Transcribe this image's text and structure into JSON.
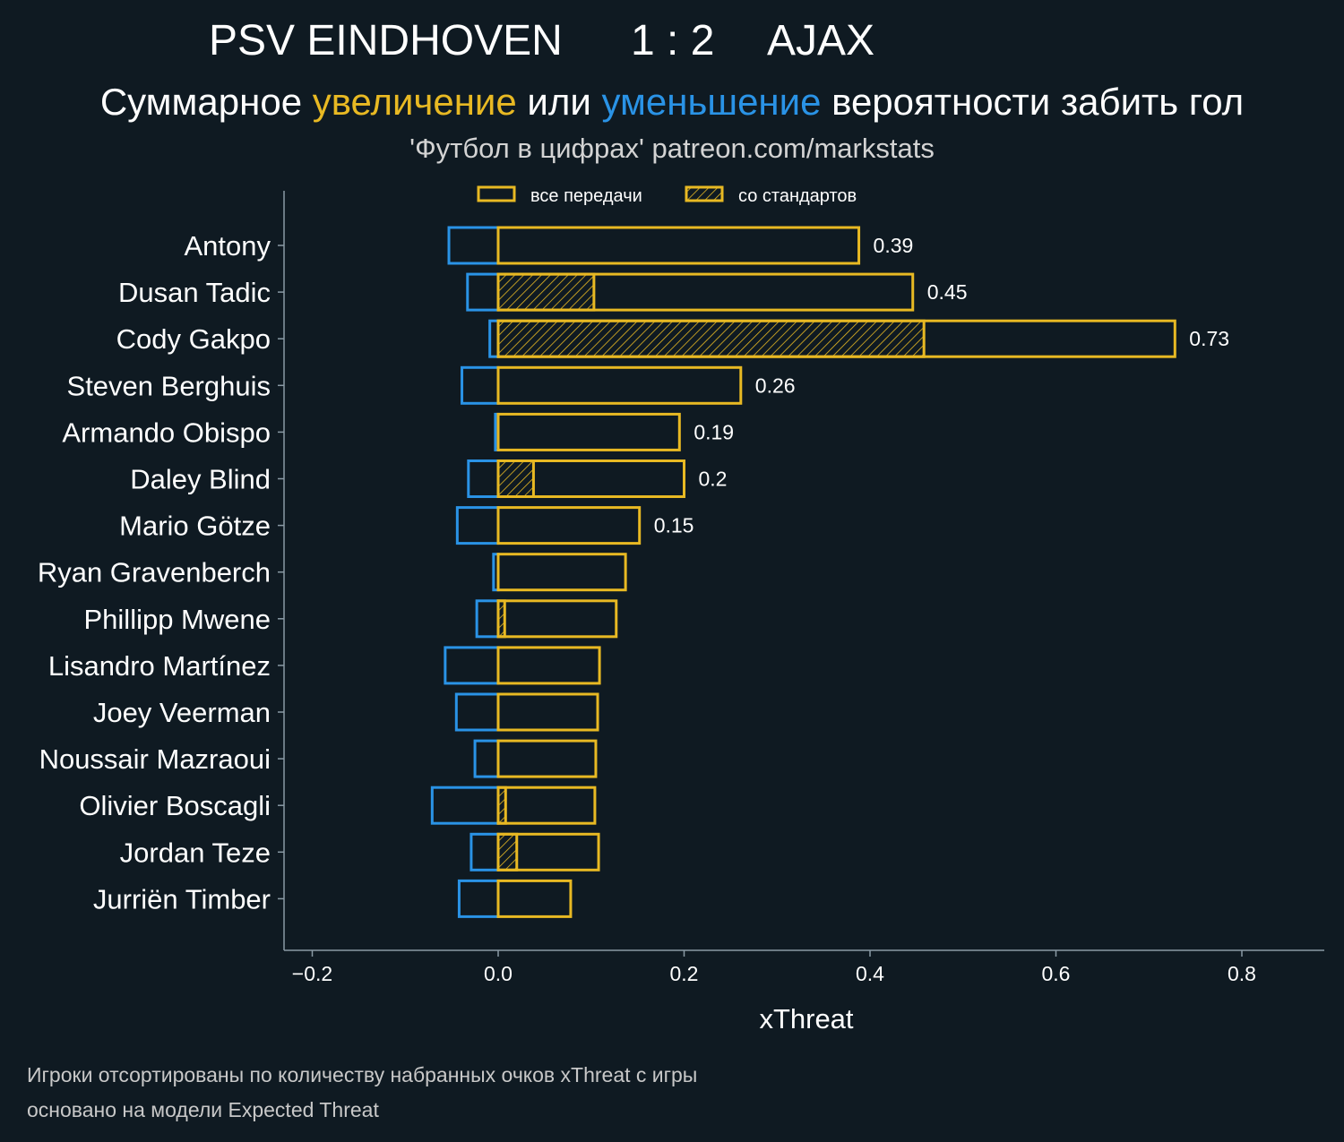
{
  "header": {
    "home_team": "PSV EINDHOVEN",
    "score": "1 : 2",
    "away_team": "AJAX",
    "subtitle_prefix": "Суммарное ",
    "subtitle_up": "увеличение",
    "subtitle_mid": " или ",
    "subtitle_down": "уменьшение",
    "subtitle_suffix": " вероятности забить гол",
    "source": "'Футбол в цифрах' patreon.com/markstats"
  },
  "footnotes": {
    "line1": "Игроки отсортированы по количеству набранных очков xThreat с игры",
    "line2": "основано на модели Expected Threat"
  },
  "colors": {
    "background": "#0f1a22",
    "increase": "#e8b923",
    "decrease": "#2a93e6",
    "axis": "#8a9aa5",
    "text": "#ffffff"
  },
  "chart_data": {
    "type": "bar",
    "orientation": "horizontal",
    "xlabel": "xThreat",
    "xlim": [
      -0.23,
      0.89
    ],
    "xticks": [
      -0.2,
      0.0,
      0.2,
      0.4,
      0.6,
      0.8
    ],
    "xtick_labels": [
      "−0.2",
      "0.0",
      "0.2",
      "0.4",
      "0.6",
      "0.8"
    ],
    "grid": false,
    "legend": {
      "position": "top-center",
      "entries": [
        "все передачи",
        "со стандартов"
      ]
    },
    "categories": [
      "Antony",
      "Dusan Tadic",
      "Cody Gakpo",
      "Steven Berghuis",
      "Armando Obispo",
      "Daley Blind",
      "Mario Götze",
      "Ryan Gravenberch",
      "Phillipp Mwene",
      "Lisandro Martínez",
      "Joey Veerman",
      "Noussair Mazraoui",
      "Olivier Boscagli",
      "Jordan Teze",
      "Jurriën Timber"
    ],
    "series": [
      {
        "name": "все передачи",
        "positive": [
          0.388,
          0.446,
          0.728,
          0.261,
          0.195,
          0.2,
          0.152,
          0.137,
          0.127,
          0.109,
          0.107,
          0.105,
          0.104,
          0.108,
          0.078
        ],
        "negative": [
          -0.053,
          -0.033,
          -0.009,
          -0.039,
          -0.003,
          -0.032,
          -0.044,
          -0.005,
          -0.023,
          -0.057,
          -0.045,
          -0.025,
          -0.071,
          -0.029,
          -0.042
        ]
      },
      {
        "name": "со стандартов",
        "positive": [
          0,
          0.103,
          0.458,
          0,
          0,
          0.038,
          0,
          0,
          0.007,
          0,
          0,
          0,
          0.008,
          0.02,
          0
        ]
      }
    ],
    "data_labels": [
      "0.39",
      "0.45",
      "0.73",
      "0.26",
      "0.19",
      "0.2",
      "0.15",
      "",
      "",
      "",
      "",
      "",
      "",
      "",
      ""
    ]
  }
}
